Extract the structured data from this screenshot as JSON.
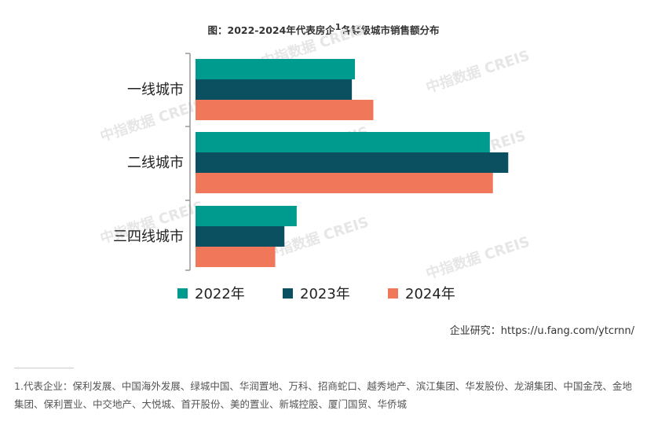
{
  "chart_data": {
    "type": "bar",
    "orientation": "horizontal",
    "title_prefix": "图：2022-2024年代表房企",
    "title_sup": "1",
    "title_suffix": "各等级城市销售额分布",
    "categories": [
      "一线城市",
      "二线城市",
      "三四线城市"
    ],
    "series": [
      {
        "name": "2022年",
        "color": "#009b8f",
        "values": [
          52,
          96,
          33
        ]
      },
      {
        "name": "2023年",
        "color": "#0a5060",
        "values": [
          51,
          102,
          29
        ]
      },
      {
        "name": "2024年",
        "color": "#f0775a",
        "values": [
          58,
          97,
          26
        ]
      }
    ],
    "xlim": [
      0,
      105
    ],
    "grid": false,
    "legend_position": "bottom",
    "watermark": "中指数据 CREIS"
  },
  "source": "企业研究：https://u.fang.com/ytcrnn/",
  "footnote": "1.代表企业：保利发展、中国海外发展、绿城中国、华润置地、万科、招商蛇口、越秀地产、滨江集团、华发股份、龙湖集团、中国金茂、金地集团、保利置业、中交地产、大悦城、首开股份、美的置业、新城控股、厦门国贸、华侨城"
}
